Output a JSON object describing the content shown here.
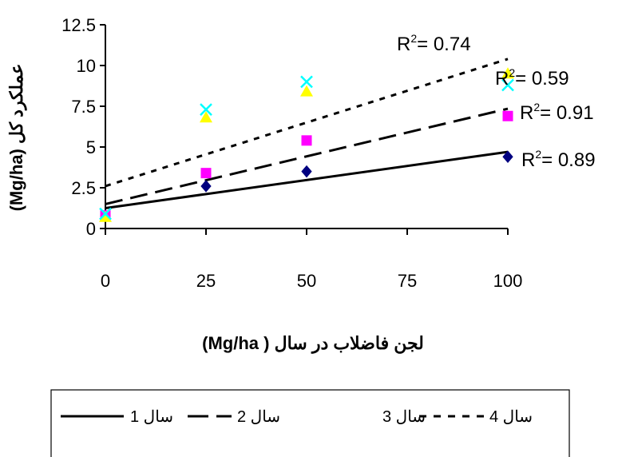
{
  "chart_data": {
    "type": "scatter",
    "title": "",
    "xlabel": "لجن فاضلاب در سال ( Mg/ha)",
    "ylabel": "عملکرد کل (Mg/ha)",
    "x_ticks": [
      "0",
      "25",
      "50",
      "75",
      "100"
    ],
    "y_ticks": [
      "0",
      "2.5",
      "5",
      "7.5",
      "10",
      "12.5"
    ],
    "xlim": [
      0,
      100
    ],
    "ylim": [
      0,
      12.5
    ],
    "grid": false,
    "legend_position": "bottom",
    "x": [
      0,
      25,
      50,
      100
    ],
    "series": [
      {
        "name": "سال 1",
        "marker": "diamond",
        "color": "#000080",
        "line_style": "solid",
        "values": [
          0.8,
          2.6,
          3.5,
          4.4
        ],
        "trend": {
          "from": [
            0,
            1.25
          ],
          "to": [
            100,
            4.7
          ]
        },
        "r2_label": "R",
        "r2_value": "= 0.89"
      },
      {
        "name": "سال 2",
        "marker": "square",
        "color": "#ff00ff",
        "line_style": "long-dash",
        "values": [
          0.8,
          3.4,
          5.4,
          6.9
        ],
        "trend": {
          "from": [
            0,
            1.5
          ],
          "to": [
            100,
            7.35
          ]
        },
        "r2_label": "R",
        "r2_value": "= 0.91"
      },
      {
        "name": "سال 3",
        "marker": "triangle",
        "color": "#ffff00",
        "line_style": "none",
        "values": [
          0.7,
          6.8,
          8.4,
          9.5
        ],
        "trend": {
          "from": [
            0,
            3.3
          ],
          "to": [
            100,
            10.3
          ]
        },
        "r2_label": "R",
        "r2_value": "= 0.59"
      },
      {
        "name": "سال 4",
        "marker": "x",
        "color": "#00ffff",
        "line_style": "short-dash",
        "values": [
          0.9,
          7.3,
          9.0,
          8.8
        ],
        "trend": {
          "from": [
            0,
            2.6
          ],
          "to": [
            100,
            10.4
          ]
        },
        "r2_label": "R",
        "r2_value": "= 0.74"
      }
    ]
  }
}
